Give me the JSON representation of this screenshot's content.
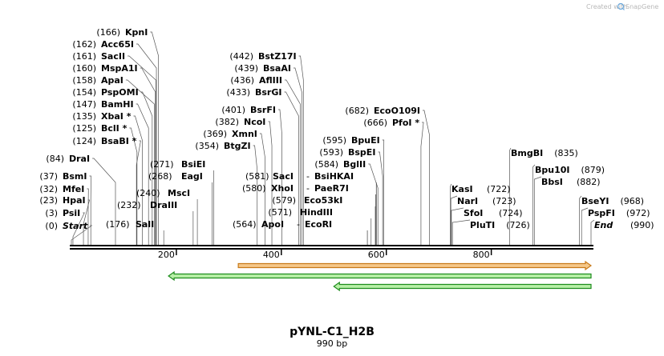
{
  "credit": {
    "prefix": "Created with",
    "brand": "SnapGene"
  },
  "sequence": {
    "name": "pYNL-C1_H2B",
    "length_label": "990 bp",
    "length": 990
  },
  "ruler": [
    {
      "pos": 200,
      "label": "200"
    },
    {
      "pos": 400,
      "label": "400"
    },
    {
      "pos": 600,
      "label": "600"
    },
    {
      "pos": 800,
      "label": "800"
    }
  ],
  "sites": [
    {
      "name": "Start",
      "pos": 0,
      "pos_label": "(0)",
      "side": "left",
      "terminal": true
    },
    {
      "name": "PsiI",
      "pos": 3,
      "pos_label": "(3)",
      "side": "left"
    },
    {
      "name": "HpaI",
      "pos": 23,
      "pos_label": "(23)",
      "side": "left"
    },
    {
      "name": "MfeI",
      "pos": 32,
      "pos_label": "(32)",
      "side": "left"
    },
    {
      "name": "BsmI",
      "pos": 37,
      "pos_label": "(37)",
      "side": "left"
    },
    {
      "name": "DraI",
      "pos": 84,
      "pos_label": "(84)",
      "side": "left"
    },
    {
      "name": "BsaBI *",
      "pos": 124,
      "pos_label": "(124)",
      "side": "left"
    },
    {
      "name": "BclI *",
      "pos": 125,
      "pos_label": "(125)",
      "side": "left"
    },
    {
      "name": "XbaI *",
      "pos": 135,
      "pos_label": "(135)",
      "side": "left"
    },
    {
      "name": "BamHI",
      "pos": 147,
      "pos_label": "(147)",
      "side": "left"
    },
    {
      "name": "PspOMI",
      "pos": 154,
      "pos_label": "(154)",
      "side": "left"
    },
    {
      "name": "ApaI",
      "pos": 158,
      "pos_label": "(158)",
      "side": "left"
    },
    {
      "name": "MspA1I",
      "pos": 160,
      "pos_label": "(160)",
      "side": "left"
    },
    {
      "name": "SacII",
      "pos": 161,
      "pos_label": "(161)",
      "side": "left"
    },
    {
      "name": "Acc65I",
      "pos": 162,
      "pos_label": "(162)",
      "side": "left"
    },
    {
      "name": "KpnI",
      "pos": 166,
      "pos_label": "(166)",
      "side": "left"
    },
    {
      "name": "SalI",
      "pos": 176,
      "pos_label": "(176)",
      "side": "left"
    },
    {
      "name": "DraIII",
      "pos": 232,
      "pos_label": "(232)",
      "side": "left"
    },
    {
      "name": "MscI",
      "pos": 240,
      "pos_label": "(240)",
      "side": "left"
    },
    {
      "name": "EagI",
      "pos": 268,
      "pos_label": "(268)",
      "side": "left"
    },
    {
      "name": "BsiEI",
      "pos": 271,
      "pos_label": "(271)",
      "side": "left"
    },
    {
      "name": "BtgZI",
      "pos": 354,
      "pos_label": "(354)",
      "side": "left"
    },
    {
      "name": "XmnI",
      "pos": 369,
      "pos_label": "(369)",
      "side": "left"
    },
    {
      "name": "NcoI",
      "pos": 382,
      "pos_label": "(382)",
      "side": "left"
    },
    {
      "name": "BsrFI",
      "pos": 401,
      "pos_label": "(401)",
      "side": "left"
    },
    {
      "name": "BsrGI",
      "pos": 433,
      "pos_label": "(433)",
      "side": "left"
    },
    {
      "name": "AflIII",
      "pos": 436,
      "pos_label": "(436)",
      "side": "left"
    },
    {
      "name": "BsaAI",
      "pos": 439,
      "pos_label": "(439)",
      "side": "left"
    },
    {
      "name": "BstZ17I",
      "pos": 442,
      "pos_label": "(442)",
      "side": "left"
    },
    {
      "name": "ApoI",
      "pos": 564,
      "pos_label": "(564)",
      "side": "left"
    },
    {
      "name": "EcoRI",
      "pos": 564,
      "pos_label": "-",
      "side": "left"
    },
    {
      "name": "HindIII",
      "pos": 571,
      "pos_label": "(571)",
      "side": "left"
    },
    {
      "name": "Eco53kI",
      "pos": 579,
      "pos_label": "(579)",
      "side": "left"
    },
    {
      "name": "PaeR7I",
      "pos": 580,
      "pos_label": "-",
      "side": "left"
    },
    {
      "name": "XhoI",
      "pos": 580,
      "pos_label": "(580)",
      "side": "left"
    },
    {
      "name": "BsiHKAI",
      "pos": 581,
      "pos_label": "-",
      "side": "left"
    },
    {
      "name": "SacI",
      "pos": 581,
      "pos_label": "(581)",
      "side": "left"
    },
    {
      "name": "BglII",
      "pos": 584,
      "pos_label": "(584)",
      "side": "left"
    },
    {
      "name": "BspEI",
      "pos": 593,
      "pos_label": "(593)",
      "side": "left"
    },
    {
      "name": "BpuEI",
      "pos": 595,
      "pos_label": "(595)",
      "side": "left"
    },
    {
      "name": "PfoI *",
      "pos": 666,
      "pos_label": "(666)",
      "side": "left"
    },
    {
      "name": "EcoO109I",
      "pos": 682,
      "pos_label": "(682)",
      "side": "left"
    },
    {
      "name": "KasI",
      "pos": 722,
      "pos_label": "(722)",
      "side": "right"
    },
    {
      "name": "NarI",
      "pos": 723,
      "pos_label": "(723)",
      "side": "right"
    },
    {
      "name": "SfoI",
      "pos": 724,
      "pos_label": "(724)",
      "side": "right"
    },
    {
      "name": "PluTI",
      "pos": 726,
      "pos_label": "(726)",
      "side": "right"
    },
    {
      "name": "BmgBI",
      "pos": 835,
      "pos_label": "(835)",
      "side": "right"
    },
    {
      "name": "Bpu10I",
      "pos": 879,
      "pos_label": "(879)",
      "side": "right"
    },
    {
      "name": "BbsI",
      "pos": 882,
      "pos_label": "(882)",
      "side": "right"
    },
    {
      "name": "BseYI",
      "pos": 968,
      "pos_label": "(968)",
      "side": "right"
    },
    {
      "name": "PspFI",
      "pos": 972,
      "pos_label": "(972)",
      "side": "right"
    },
    {
      "name": "End",
      "pos": 990,
      "pos_label": "(990)",
      "side": "right",
      "terminal": true
    }
  ],
  "features": [
    {
      "name": "feature-forward-orange",
      "start": 318,
      "end": 990,
      "direction": "forward",
      "color": "#f5c88a",
      "edge": "#c87a1a"
    },
    {
      "name": "feature-reverse-green-long",
      "start": 185,
      "end": 990,
      "direction": "reverse",
      "color": "#b9f0a8",
      "edge": "#1e8c1e"
    },
    {
      "name": "feature-reverse-green-short",
      "start": 500,
      "end": 990,
      "direction": "reverse",
      "color": "#b9f0a8",
      "edge": "#1e8c1e"
    }
  ],
  "colors": {
    "backbone": "#000000",
    "line": "#000000",
    "credit": "#b8b8b8",
    "snapgene_blue": "#6aa8dc"
  }
}
